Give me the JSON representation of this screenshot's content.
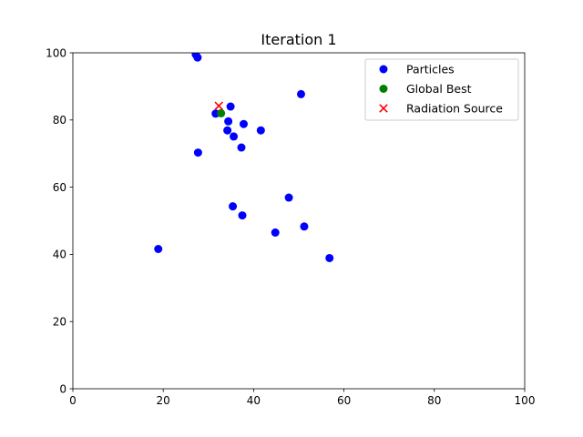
{
  "chart_data": {
    "type": "scatter",
    "title": "Iteration 1",
    "xlabel": "",
    "ylabel": "",
    "xlim": [
      0,
      100
    ],
    "ylim": [
      0,
      100
    ],
    "xticks": [
      0,
      20,
      40,
      60,
      80,
      100
    ],
    "yticks": [
      0,
      20,
      40,
      60,
      80,
      100
    ],
    "grid": false,
    "legend_position": "top-right",
    "series": [
      {
        "name": "Particles",
        "marker": "circle",
        "color": "#0000ff",
        "points": [
          [
            27.2,
            99.5
          ],
          [
            27.6,
            98.6
          ],
          [
            50.5,
            87.7
          ],
          [
            34.9,
            84.0
          ],
          [
            31.6,
            81.9
          ],
          [
            34.4,
            79.6
          ],
          [
            37.8,
            78.8
          ],
          [
            34.2,
            76.9
          ],
          [
            41.6,
            76.9
          ],
          [
            35.6,
            75.1
          ],
          [
            37.3,
            71.8
          ],
          [
            27.7,
            70.3
          ],
          [
            47.8,
            56.9
          ],
          [
            35.4,
            54.3
          ],
          [
            37.5,
            51.6
          ],
          [
            51.2,
            48.3
          ],
          [
            44.8,
            46.5
          ],
          [
            18.9,
            41.6
          ],
          [
            56.8,
            38.9
          ]
        ]
      },
      {
        "name": "Global Best",
        "marker": "circle",
        "color": "#008000",
        "points": [
          [
            32.8,
            82.0
          ]
        ]
      },
      {
        "name": "Radiation Source",
        "marker": "x",
        "color": "#ff0000",
        "points": [
          [
            32.3,
            84.2
          ]
        ]
      }
    ]
  }
}
